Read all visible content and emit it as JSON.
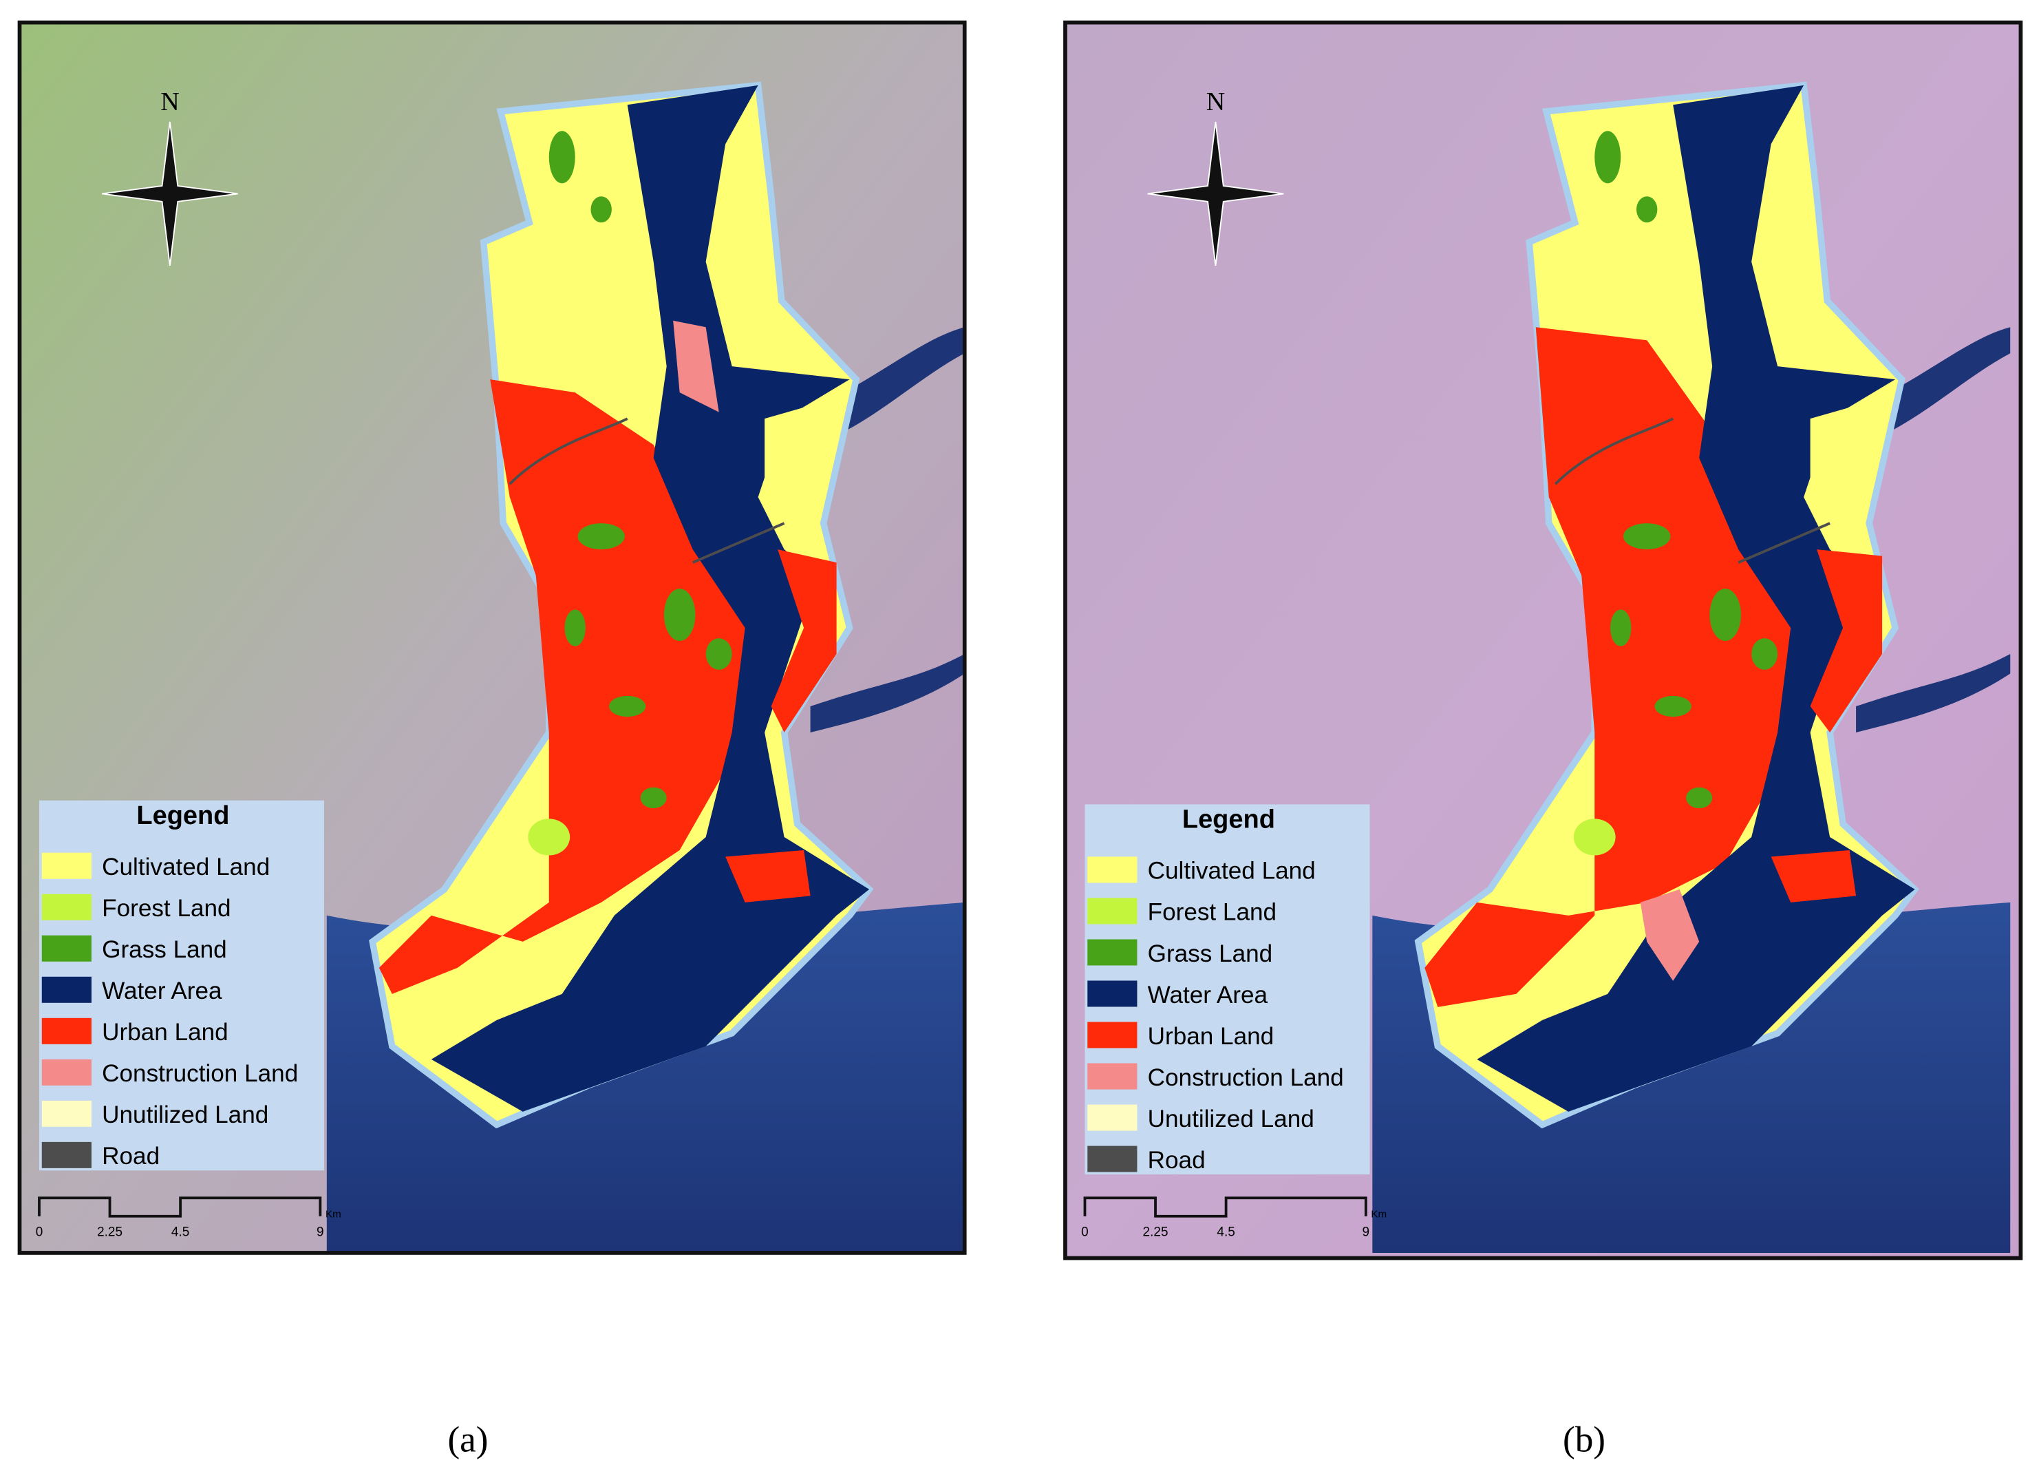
{
  "panels": [
    {
      "caption": "(a)",
      "north": "N",
      "legend": {
        "title": "Legend",
        "items": [
          {
            "label": "Cultivated Land",
            "color": "#ffff73"
          },
          {
            "label": "Forest Land",
            "color": "#c3f53c"
          },
          {
            "label": "Grass Land",
            "color": "#48a318"
          },
          {
            "label": "Water Area",
            "color": "#0a2468"
          },
          {
            "label": "Urban Land",
            "color": "#ff2a0a"
          },
          {
            "label": "Construction Land",
            "color": "#f58a8a"
          },
          {
            "label": "Unutilized Land",
            "color": "#fffcc2"
          },
          {
            "label": "Road",
            "color": "#4d4d4d"
          }
        ]
      },
      "scale_bar": {
        "labels": [
          "0",
          "2.25",
          "4.5",
          "9"
        ],
        "unit": "Km"
      }
    },
    {
      "caption": "(b)",
      "north": "N",
      "legend": {
        "title": "Legend",
        "items": [
          {
            "label": "Cultivated Land",
            "color": "#ffff73"
          },
          {
            "label": "Forest Land",
            "color": "#c3f53c"
          },
          {
            "label": "Grass Land",
            "color": "#48a318"
          },
          {
            "label": "Water Area",
            "color": "#0a2468"
          },
          {
            "label": "Urban Land",
            "color": "#ff2a0a"
          },
          {
            "label": "Construction Land",
            "color": "#f58a8a"
          },
          {
            "label": "Unutilized Land",
            "color": "#fffcc2"
          },
          {
            "label": "Road",
            "color": "#4d4d4d"
          }
        ]
      },
      "scale_bar": {
        "labels": [
          "0",
          "2.25",
          "4.5",
          "9"
        ],
        "unit": "Km"
      }
    }
  ]
}
